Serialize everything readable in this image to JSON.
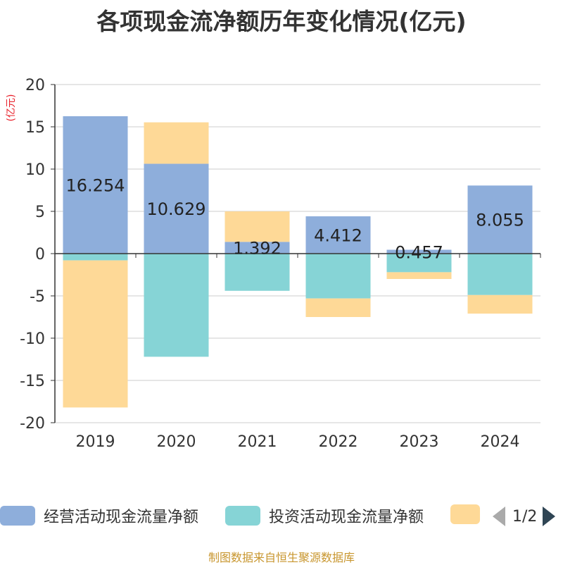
{
  "chart_data": {
    "type": "bar",
    "stacked": true,
    "title": "各项现金流净额历年变化情况(亿元)",
    "ylabel": "(亿元)",
    "ylim": [
      -20,
      20
    ],
    "yticks": [
      20,
      15,
      10,
      5,
      0,
      -5,
      -10,
      -15,
      -20
    ],
    "ytick_labels": [
      "20",
      "15",
      "10",
      "5",
      "0",
      "-5",
      "-10",
      "-15",
      "-20"
    ],
    "categories": [
      "2019",
      "2020",
      "2021",
      "2022",
      "2023",
      "2024"
    ],
    "series": [
      {
        "name": "经营活动现金流量净额",
        "color": "#8eaedb",
        "values": [
          16.254,
          10.629,
          1.392,
          4.412,
          0.457,
          8.055
        ]
      },
      {
        "name": "投资活动现金流量净额",
        "color": "#86d4d6",
        "values": [
          -0.8,
          -12.2,
          -4.4,
          -5.3,
          -2.2,
          -4.9
        ]
      },
      {
        "name": "",
        "color": "#fed997",
        "values": [
          -17.4,
          4.9,
          3.6,
          -2.2,
          -0.8,
          -2.2
        ]
      }
    ],
    "data_labels": [
      "16.254",
      "10.629",
      "1.392",
      "4.412",
      "0.457",
      "8.055"
    ],
    "legend_position": "bottom",
    "grid": true
  },
  "legend": {
    "items": [
      {
        "label": "经营活动现金流量净额",
        "color": "#8eaedb"
      },
      {
        "label": "投资活动现金流量净额",
        "color": "#86d4d6"
      },
      {
        "label": "",
        "color": "#fed997"
      }
    ],
    "page_indicator": "1/2"
  },
  "source": "制图数据来自恒生聚源数据库"
}
